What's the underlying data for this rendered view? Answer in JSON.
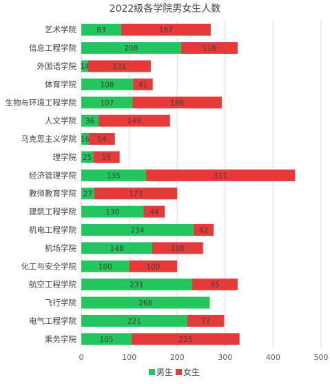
{
  "chart_data": {
    "type": "bar",
    "orientation": "horizontal",
    "stacked": true,
    "title": "2022级各学院男女生人数",
    "categories": [
      "艺术学院",
      "信息工程学院",
      "外国语学院",
      "体育学院",
      "生物与环境工程学院",
      "人文学院",
      "马克思主义学院",
      "理学院",
      "经济管理学院",
      "教师教育学院",
      "建筑工程学院",
      "机电工程学院",
      "机场学院",
      "化工与安全学院",
      "航空工程学院",
      "飞行学院",
      "电气工程学院",
      "乘务学院"
    ],
    "series": [
      {
        "name": "男生",
        "color": "#22c55e",
        "values": [
          83,
          208,
          14,
          108,
          107,
          36,
          16,
          25,
          135,
          27,
          130,
          234,
          148,
          100,
          231,
          268,
          221,
          105
        ]
      },
      {
        "name": "女生",
        "color": "#e5393a",
        "values": [
          187,
          118,
          131,
          41,
          186,
          149,
          54,
          55,
          311,
          173,
          44,
          42,
          106,
          100,
          95,
          0,
          77,
          225
        ]
      }
    ],
    "xlim": [
      0,
      500
    ],
    "xticks": [
      "0",
      "100",
      "200",
      "300",
      "400",
      "500"
    ],
    "grid": true,
    "legend": "bottom"
  }
}
